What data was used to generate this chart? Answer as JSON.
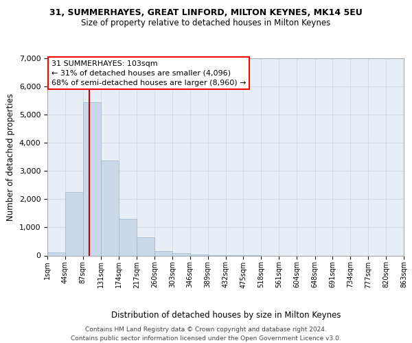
{
  "title": "31, SUMMERHAYES, GREAT LINFORD, MILTON KEYNES, MK14 5EU",
  "subtitle": "Size of property relative to detached houses in Milton Keynes",
  "xlabel": "Distribution of detached houses by size in Milton Keynes",
  "ylabel": "Number of detached properties",
  "bar_color": "#c9d9ea",
  "bar_edge_color": "#9ab5cc",
  "grid_color": "#d4dce8",
  "background_color": "#e8eef5",
  "annotation_text": "31 SUMMERHAYES: 103sqm\n← 31% of detached houses are smaller (4,096)\n68% of semi-detached houses are larger (8,960) →",
  "vline_x": 103,
  "vline_color": "#cc0000",
  "footer1": "Contains HM Land Registry data © Crown copyright and database right 2024.",
  "footer2": "Contains public sector information licensed under the Open Government Licence v3.0.",
  "bin_edges": [
    1,
    44,
    87,
    131,
    174,
    217,
    260,
    303,
    346,
    389,
    432,
    475,
    518,
    561,
    604,
    648,
    691,
    734,
    777,
    820,
    863
  ],
  "bin_labels": [
    "1sqm",
    "44sqm",
    "87sqm",
    "131sqm",
    "174sqm",
    "217sqm",
    "260sqm",
    "303sqm",
    "346sqm",
    "389sqm",
    "432sqm",
    "475sqm",
    "518sqm",
    "561sqm",
    "604sqm",
    "648sqm",
    "691sqm",
    "734sqm",
    "777sqm",
    "820sqm",
    "863sqm"
  ],
  "bar_heights": [
    100,
    2260,
    5450,
    3380,
    1310,
    650,
    165,
    80,
    30,
    5,
    2,
    1,
    0,
    0,
    0,
    0,
    0,
    0,
    0,
    0
  ],
  "ylim": [
    0,
    7000
  ],
  "yticks": [
    0,
    1000,
    2000,
    3000,
    4000,
    5000,
    6000,
    7000
  ]
}
